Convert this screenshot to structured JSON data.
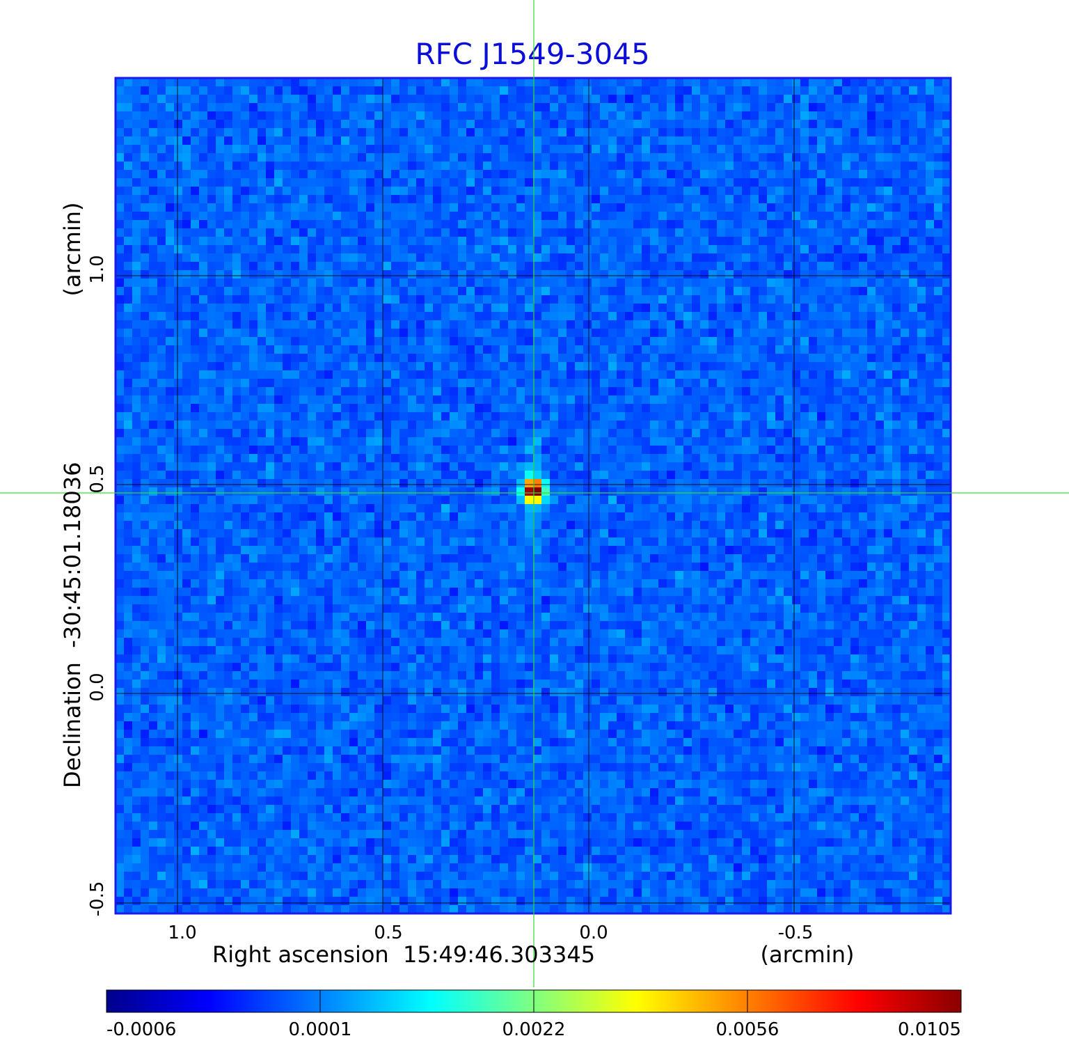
{
  "title": "RFC J1549-3045",
  "x_axis": {
    "label": "Right ascension  15:49:46.303345",
    "unit": "(arcmin)",
    "ticks": [
      "1.0",
      "0.5",
      "0.0",
      "-0.5"
    ]
  },
  "y_axis": {
    "label": "Declination  -30:45:01.18036",
    "unit": "(arcmin)",
    "ticks": [
      "1.0",
      "0.5",
      "0.0",
      "-0.5"
    ]
  },
  "colorbar": {
    "ticks": [
      "-0.0006",
      "0.0001",
      "0.0022",
      "0.0056",
      "0.0105"
    ]
  },
  "colors": {
    "title": "#0d0dd8",
    "frame": "#1a1aee",
    "crosshair": "#33dd33",
    "grid": "#000000",
    "colormap": [
      "#00008b",
      "#0000ff",
      "#0080ff",
      "#00ffff",
      "#80ff80",
      "#ffff00",
      "#ff8000",
      "#ff0000",
      "#8b0000"
    ]
  },
  "image": {
    "source_position": {
      "ra_offset_arcmin": 0.13,
      "dec_offset_arcmin": 0.48
    },
    "extent_arcmin": {
      "x": [
        1.15,
        -0.89
      ],
      "y": [
        -0.52,
        1.48
      ]
    }
  }
}
